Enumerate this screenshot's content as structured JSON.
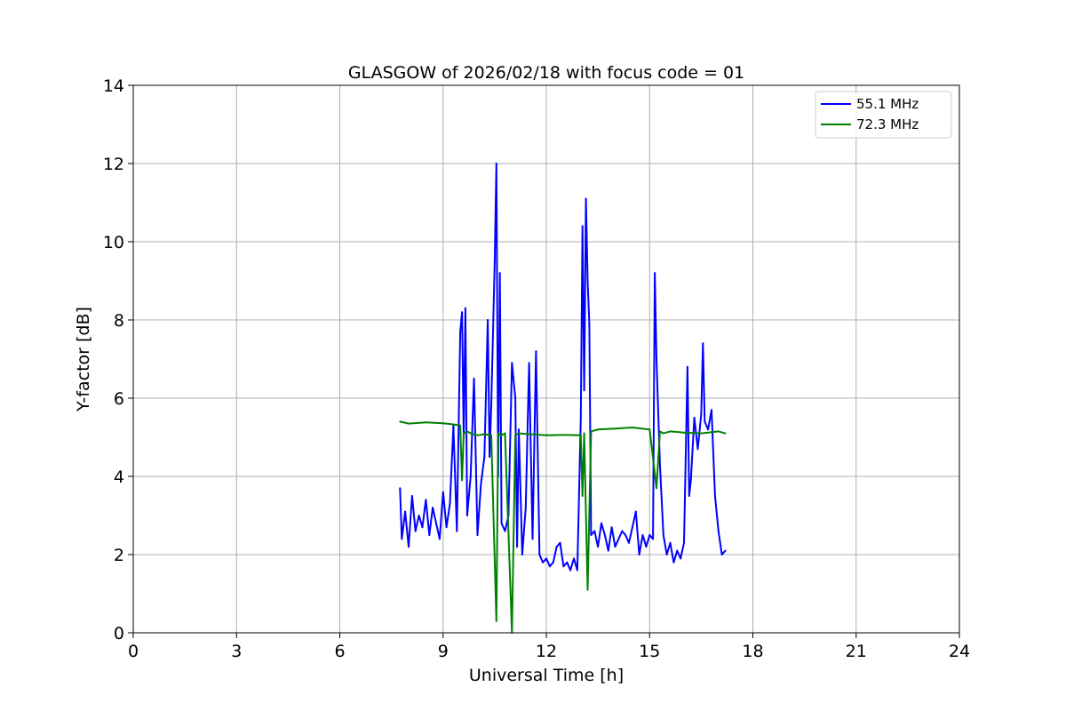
{
  "chart_data": {
    "type": "line",
    "title": "GLASGOW of 2026/02/18 with focus code = 01",
    "xlabel": "Universal Time [h]",
    "ylabel": "Y-factor [dB]",
    "xlim": [
      0,
      24
    ],
    "ylim": [
      0,
      14
    ],
    "xticks": [
      0,
      3,
      6,
      9,
      12,
      15,
      18,
      21,
      24
    ],
    "yticks": [
      0,
      2,
      4,
      6,
      8,
      10,
      12,
      14
    ],
    "x_tick_labels": [
      "0",
      "3",
      "6",
      "9",
      "12",
      "15",
      "18",
      "21",
      "24"
    ],
    "y_tick_labels": [
      "0",
      "2",
      "4",
      "6",
      "8",
      "10",
      "12",
      "14"
    ],
    "grid": true,
    "legend_position": "top-right",
    "series": [
      {
        "name": "   55.1 MHz",
        "color": "#0000ff",
        "x": [
          7.75,
          7.8,
          7.9,
          8.0,
          8.1,
          8.2,
          8.3,
          8.4,
          8.5,
          8.6,
          8.7,
          8.8,
          8.9,
          9.0,
          9.1,
          9.2,
          9.3,
          9.4,
          9.5,
          9.55,
          9.6,
          9.65,
          9.7,
          9.8,
          9.9,
          10.0,
          10.1,
          10.2,
          10.3,
          10.35,
          10.4,
          10.5,
          10.55,
          10.6,
          10.65,
          10.7,
          10.8,
          10.9,
          11.0,
          11.1,
          11.15,
          11.2,
          11.3,
          11.4,
          11.5,
          11.6,
          11.7,
          11.8,
          11.9,
          12.0,
          12.1,
          12.2,
          12.3,
          12.4,
          12.5,
          12.6,
          12.7,
          12.8,
          12.9,
          13.0,
          13.05,
          13.1,
          13.15,
          13.2,
          13.25,
          13.3,
          13.4,
          13.5,
          13.6,
          13.7,
          13.8,
          13.9,
          14.0,
          14.1,
          14.2,
          14.3,
          14.4,
          14.5,
          14.6,
          14.7,
          14.8,
          14.9,
          15.0,
          15.1,
          15.15,
          15.2,
          15.3,
          15.4,
          15.5,
          15.6,
          15.7,
          15.8,
          15.9,
          16.0,
          16.1,
          16.15,
          16.2,
          16.3,
          16.4,
          16.5,
          16.55,
          16.6,
          16.7,
          16.8,
          16.9,
          17.0,
          17.1,
          17.2
        ],
        "y": [
          3.7,
          2.4,
          3.1,
          2.2,
          3.5,
          2.6,
          3.0,
          2.7,
          3.4,
          2.5,
          3.2,
          2.8,
          2.4,
          3.6,
          2.7,
          3.3,
          5.3,
          2.6,
          7.7,
          8.2,
          5.0,
          8.3,
          3.0,
          4.0,
          6.5,
          2.5,
          3.8,
          4.5,
          8.0,
          4.5,
          5.8,
          9.5,
          12.0,
          4.0,
          9.2,
          2.8,
          2.6,
          3.0,
          6.9,
          6.0,
          2.2,
          5.2,
          2.0,
          3.2,
          6.9,
          2.4,
          7.2,
          2.0,
          1.8,
          1.9,
          1.7,
          1.8,
          2.2,
          2.3,
          1.7,
          1.8,
          1.6,
          1.9,
          1.6,
          5.5,
          10.4,
          6.2,
          11.1,
          9.0,
          7.9,
          2.5,
          2.6,
          2.2,
          2.8,
          2.5,
          2.1,
          2.7,
          2.2,
          2.4,
          2.6,
          2.5,
          2.3,
          2.7,
          3.1,
          2.0,
          2.5,
          2.2,
          2.5,
          2.4,
          9.2,
          7.0,
          4.3,
          2.5,
          2.0,
          2.3,
          1.8,
          2.1,
          1.9,
          2.3,
          6.8,
          3.5,
          3.9,
          5.5,
          4.7,
          5.6,
          7.4,
          5.4,
          5.2,
          5.7,
          3.5,
          2.6,
          2.0,
          2.1
        ]
      },
      {
        "name": "   72.3 MHz",
        "color": "#008000",
        "x": [
          7.75,
          8.0,
          8.5,
          9.0,
          9.3,
          9.5,
          9.55,
          9.6,
          9.7,
          9.8,
          10.0,
          10.2,
          10.4,
          10.55,
          10.6,
          10.7,
          10.8,
          11.0,
          11.1,
          11.2,
          11.5,
          12.0,
          12.5,
          13.0,
          13.05,
          13.1,
          13.2,
          13.3,
          13.5,
          14.0,
          14.5,
          15.0,
          15.2,
          15.3,
          15.4,
          15.6,
          16.0,
          16.5,
          17.0,
          17.2
        ],
        "y": [
          5.4,
          5.35,
          5.38,
          5.36,
          5.33,
          5.3,
          3.9,
          5.1,
          5.15,
          5.1,
          5.05,
          5.08,
          5.05,
          0.3,
          5.1,
          5.05,
          5.1,
          0.0,
          5.05,
          5.1,
          5.08,
          5.05,
          5.06,
          5.05,
          3.5,
          5.1,
          1.1,
          5.15,
          5.2,
          5.22,
          5.25,
          5.2,
          3.7,
          5.15,
          5.1,
          5.15,
          5.12,
          5.1,
          5.15,
          5.1
        ]
      }
    ]
  }
}
